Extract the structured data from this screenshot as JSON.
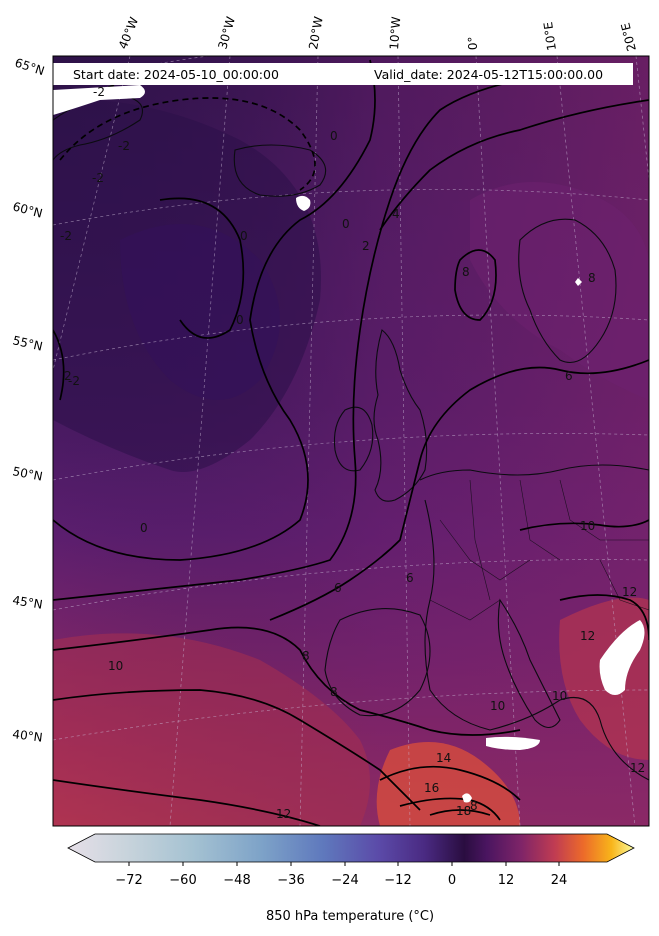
{
  "header": {
    "start_date": "Start date: 2024-05-10_00:00:00",
    "valid_date": "Valid_date: 2024-05-12T15:00:00.00"
  },
  "map": {
    "lon_labels": [
      "40°W",
      "30°W",
      "20°W",
      "10°W",
      "0°",
      "10°E",
      "20°E"
    ],
    "lat_labels": [
      "65°N",
      "60°N",
      "55°N",
      "50°N",
      "45°N",
      "40°N"
    ],
    "contour_labels": [
      "-2",
      "-2",
      "-2",
      "-2",
      "0",
      "0",
      "0",
      "0",
      "2",
      "2",
      "4",
      "6",
      "6",
      "6",
      "8",
      "8",
      "8",
      "8",
      "8",
      "10",
      "10",
      "10",
      "10",
      "12",
      "12",
      "12",
      "12",
      "14",
      "16",
      "18",
      "0",
      "-2"
    ]
  },
  "colorbar": {
    "ticks": [
      "−72",
      "−60",
      "−48",
      "−36",
      "−24",
      "−12",
      "0",
      "12",
      "24"
    ],
    "label": "850 hPa temperature ($^\\circ$C)",
    "label_display": "850 hPa temperature (°C)",
    "colormap": "inferno-like",
    "range": [
      -84,
      36
    ]
  },
  "colors": {
    "cold_bg": "#2d1450",
    "mid_bg": "#5a1d70",
    "warm_bg": "#9a2a62",
    "hot_bg": "#d5504a"
  }
}
